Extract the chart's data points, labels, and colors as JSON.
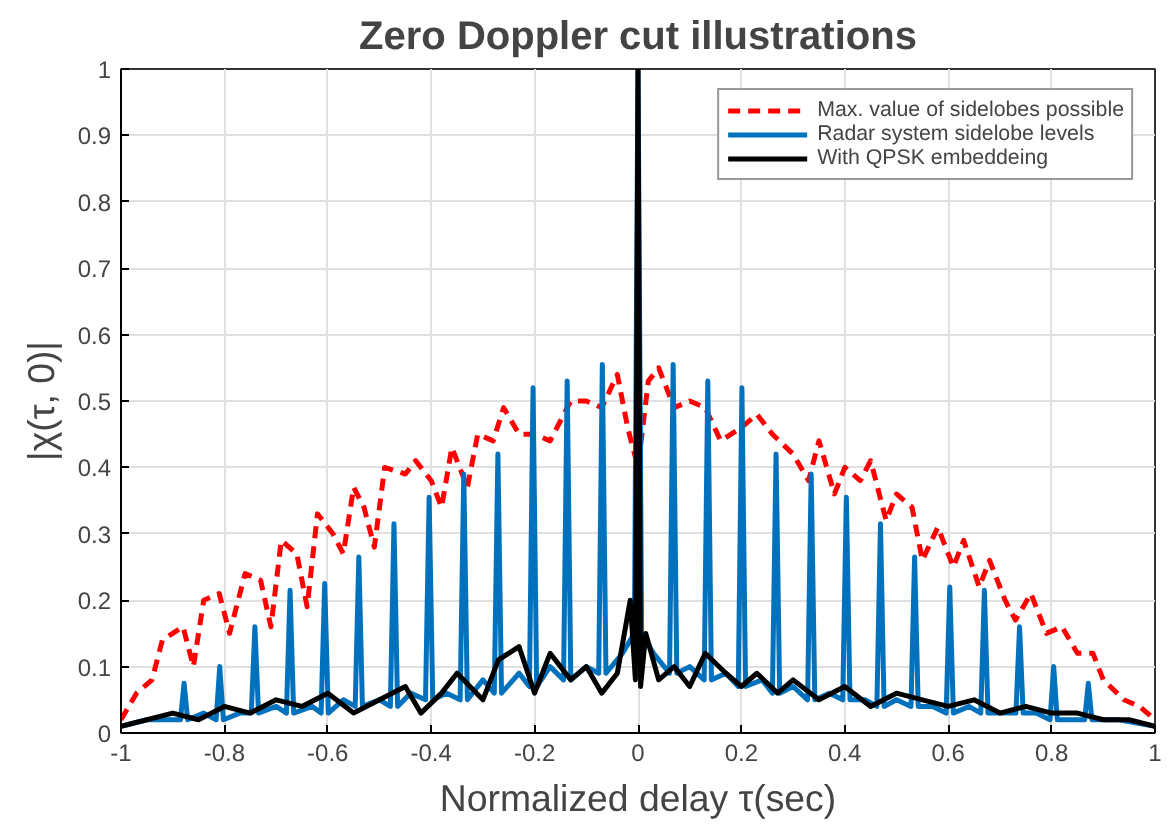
{
  "chart_data": {
    "type": "line",
    "title": "Zero Doppler cut illustrations",
    "xlabel": "Normalized delay τ(sec)",
    "ylabel": "|χ(τ, 0)|",
    "xlim": [
      -1,
      1
    ],
    "ylim": [
      0,
      1
    ],
    "xticks": [
      -1,
      -0.8,
      -0.6,
      -0.4,
      -0.2,
      0,
      0.2,
      0.4,
      0.6,
      0.8,
      1
    ],
    "yticks": [
      0,
      0.1,
      0.2,
      0.3,
      0.4,
      0.5,
      0.6,
      0.7,
      0.8,
      0.9,
      1
    ],
    "grid": true,
    "legend": "top right",
    "marker": "none",
    "series": [
      {
        "name": "Max. value of sidelobes possible",
        "color": "#ff0000",
        "line_style": "dashed",
        "x": [
          -1,
          -0.97,
          -0.94,
          -0.92,
          -0.88,
          -0.86,
          -0.84,
          -0.81,
          -0.79,
          -0.76,
          -0.73,
          -0.71,
          -0.69,
          -0.66,
          -0.64,
          -0.62,
          -0.59,
          -0.57,
          -0.55,
          -0.53,
          -0.51,
          -0.49,
          -0.45,
          -0.43,
          -0.4,
          -0.38,
          -0.36,
          -0.33,
          -0.31,
          -0.28,
          -0.26,
          -0.23,
          -0.2,
          -0.17,
          -0.13,
          -0.1,
          -0.07,
          -0.04,
          -0.02,
          0,
          0.02,
          0.04,
          0.07,
          0.1,
          0.13,
          0.16,
          0.2,
          0.23,
          0.26,
          0.3,
          0.33,
          0.35,
          0.38,
          0.4,
          0.43,
          0.45,
          0.48,
          0.5,
          0.53,
          0.55,
          0.58,
          0.61,
          0.63,
          0.66,
          0.68,
          0.71,
          0.73,
          0.76,
          0.79,
          0.82,
          0.85,
          0.88,
          0.9,
          0.94,
          0.97,
          1
        ],
        "values": [
          0.02,
          0.06,
          0.08,
          0.14,
          0.16,
          0.1,
          0.2,
          0.21,
          0.15,
          0.24,
          0.23,
          0.16,
          0.29,
          0.27,
          0.19,
          0.33,
          0.3,
          0.27,
          0.37,
          0.34,
          0.28,
          0.4,
          0.39,
          0.41,
          0.38,
          0.34,
          0.43,
          0.37,
          0.45,
          0.44,
          0.49,
          0.45,
          0.45,
          0.44,
          0.5,
          0.5,
          0.49,
          0.54,
          0.46,
          0.4,
          0.53,
          0.55,
          0.49,
          0.5,
          0.49,
          0.44,
          0.46,
          0.48,
          0.45,
          0.42,
          0.38,
          0.44,
          0.36,
          0.4,
          0.38,
          0.41,
          0.32,
          0.36,
          0.34,
          0.26,
          0.31,
          0.25,
          0.29,
          0.22,
          0.26,
          0.2,
          0.17,
          0.21,
          0.15,
          0.16,
          0.12,
          0.12,
          0.08,
          0.05,
          0.04,
          0.02
        ]
      },
      {
        "name": "Radar system sidelobe levels",
        "color": "#0072bd",
        "line_style": "solid",
        "x": [
          -1,
          -0.95,
          -0.885,
          -0.878,
          -0.871,
          -0.84,
          -0.816,
          -0.809,
          -0.802,
          -0.77,
          -0.748,
          -0.741,
          -0.734,
          -0.7,
          -0.68,
          -0.673,
          -0.666,
          -0.63,
          -0.613,
          -0.606,
          -0.599,
          -0.57,
          -0.547,
          -0.54,
          -0.533,
          -0.5,
          -0.479,
          -0.472,
          -0.465,
          -0.44,
          -0.411,
          -0.404,
          -0.397,
          -0.37,
          -0.344,
          -0.337,
          -0.33,
          -0.3,
          -0.278,
          -0.271,
          -0.264,
          -0.23,
          -0.21,
          -0.203,
          -0.196,
          -0.17,
          -0.144,
          -0.137,
          -0.13,
          -0.1,
          -0.076,
          -0.069,
          -0.062,
          -0.03,
          -0.007,
          0,
          0.007,
          0.03,
          0.061,
          0.068,
          0.075,
          0.1,
          0.128,
          0.135,
          0.142,
          0.17,
          0.194,
          0.201,
          0.208,
          0.24,
          0.26,
          0.267,
          0.274,
          0.3,
          0.328,
          0.335,
          0.342,
          0.37,
          0.396,
          0.403,
          0.41,
          0.44,
          0.462,
          0.469,
          0.476,
          0.5,
          0.528,
          0.535,
          0.542,
          0.57,
          0.596,
          0.603,
          0.61,
          0.64,
          0.663,
          0.67,
          0.677,
          0.7,
          0.731,
          0.738,
          0.745,
          0.77,
          0.797,
          0.804,
          0.811,
          0.84,
          0.864,
          0.871,
          0.878,
          0.93,
          1
        ],
        "values": [
          0.01,
          0.02,
          0.02,
          0.075,
          0.02,
          0.03,
          0.02,
          0.1,
          0.02,
          0.03,
          0.03,
          0.16,
          0.03,
          0.04,
          0.03,
          0.215,
          0.03,
          0.04,
          0.03,
          0.225,
          0.03,
          0.05,
          0.04,
          0.265,
          0.04,
          0.05,
          0.04,
          0.315,
          0.04,
          0.06,
          0.05,
          0.355,
          0.05,
          0.06,
          0.05,
          0.39,
          0.05,
          0.08,
          0.06,
          0.42,
          0.06,
          0.09,
          0.07,
          0.52,
          0.07,
          0.1,
          0.08,
          0.53,
          0.08,
          0.1,
          0.09,
          0.555,
          0.09,
          0.12,
          0.15,
          1,
          0.15,
          0.12,
          0.09,
          0.555,
          0.09,
          0.1,
          0.08,
          0.53,
          0.08,
          0.09,
          0.07,
          0.52,
          0.07,
          0.08,
          0.06,
          0.42,
          0.06,
          0.07,
          0.05,
          0.39,
          0.05,
          0.06,
          0.05,
          0.355,
          0.05,
          0.05,
          0.04,
          0.315,
          0.04,
          0.05,
          0.04,
          0.265,
          0.04,
          0.04,
          0.03,
          0.22,
          0.03,
          0.04,
          0.03,
          0.215,
          0.03,
          0.03,
          0.03,
          0.16,
          0.03,
          0.03,
          0.02,
          0.1,
          0.02,
          0.02,
          0.02,
          0.075,
          0.02,
          0.02,
          0.01
        ]
      },
      {
        "name": "With QPSK embeddeing",
        "color": "#000000",
        "line_style": "solid",
        "x": [
          -1,
          -0.95,
          -0.9,
          -0.85,
          -0.8,
          -0.75,
          -0.7,
          -0.65,
          -0.6,
          -0.55,
          -0.5,
          -0.45,
          -0.42,
          -0.38,
          -0.35,
          -0.3,
          -0.27,
          -0.23,
          -0.2,
          -0.17,
          -0.13,
          -0.1,
          -0.07,
          -0.04,
          -0.015,
          -0.005,
          0,
          0.005,
          0.015,
          0.04,
          0.07,
          0.1,
          0.13,
          0.17,
          0.2,
          0.23,
          0.27,
          0.3,
          0.35,
          0.4,
          0.45,
          0.5,
          0.55,
          0.6,
          0.65,
          0.7,
          0.75,
          0.8,
          0.85,
          0.9,
          0.95,
          1
        ],
        "values": [
          0.01,
          0.02,
          0.03,
          0.02,
          0.04,
          0.03,
          0.05,
          0.04,
          0.06,
          0.03,
          0.05,
          0.07,
          0.03,
          0.06,
          0.09,
          0.05,
          0.11,
          0.13,
          0.06,
          0.12,
          0.08,
          0.1,
          0.06,
          0.09,
          0.2,
          0.08,
          1,
          0.07,
          0.15,
          0.08,
          0.1,
          0.07,
          0.12,
          0.09,
          0.07,
          0.09,
          0.06,
          0.08,
          0.05,
          0.07,
          0.04,
          0.06,
          0.05,
          0.04,
          0.05,
          0.03,
          0.04,
          0.03,
          0.03,
          0.02,
          0.02,
          0.01
        ]
      }
    ]
  }
}
